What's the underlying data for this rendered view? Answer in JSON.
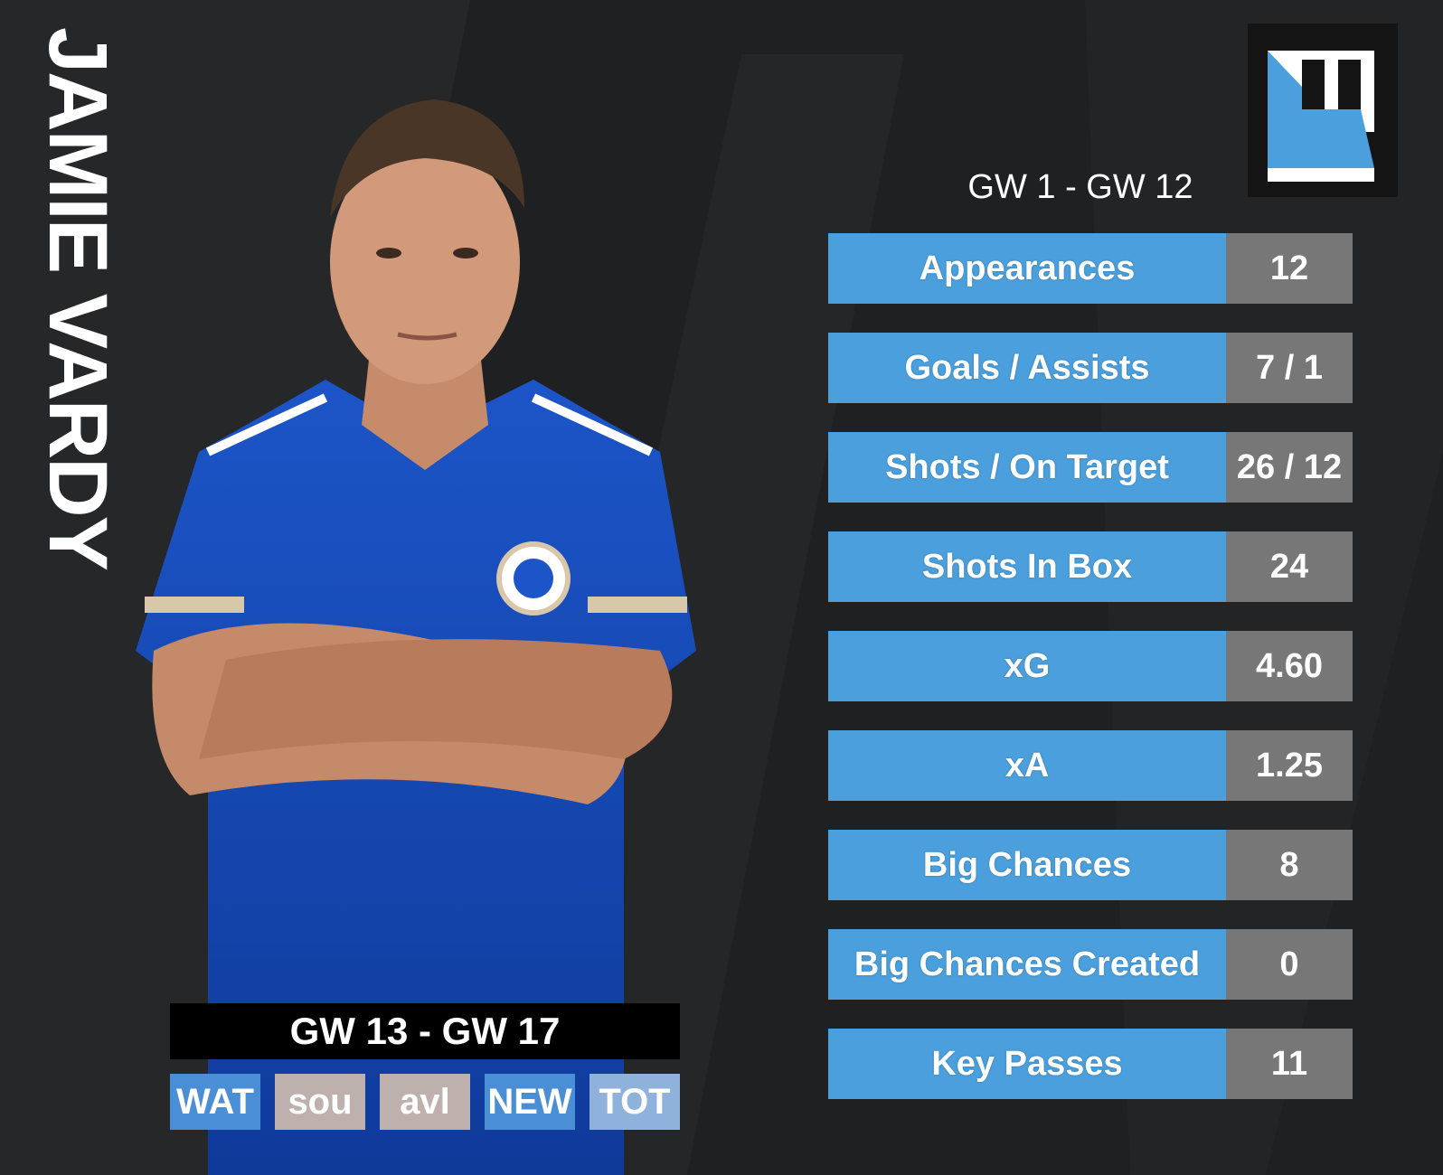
{
  "player": {
    "name": "JAMIE VARDY"
  },
  "brand": {
    "logo_icon": "H-logo-icon",
    "accent": "#4a9fdc",
    "panel": "#141414"
  },
  "stats_range": "GW 1 - GW 12",
  "stats": [
    {
      "label": "Appearances",
      "value": "12"
    },
    {
      "label": "Goals / Assists",
      "value": "7 / 1"
    },
    {
      "label": "Shots / On Target",
      "value": "26 / 12"
    },
    {
      "label": "Shots In Box",
      "value": "24"
    },
    {
      "label": "xG",
      "value": "4.60"
    },
    {
      "label": "xA",
      "value": "1.25"
    },
    {
      "label": "Big Chances",
      "value": "8"
    },
    {
      "label": "Big Chances Created",
      "value": "0"
    },
    {
      "label": "Key Passes",
      "value": "11"
    }
  ],
  "fixtures_range": "GW 13 - GW 17",
  "fixtures": [
    {
      "team": "WAT",
      "color": "#4a8fd6"
    },
    {
      "team": "sou",
      "color": "#bdb0ad"
    },
    {
      "team": "avl",
      "color": "#bdb0ad"
    },
    {
      "team": "NEW",
      "color": "#4a8fd6"
    },
    {
      "team": "TOT",
      "color": "#8fb2dc"
    }
  ],
  "colors": {
    "label_bg": "#4a9fdc",
    "value_bg": "#777777",
    "background": "#1f2021"
  }
}
